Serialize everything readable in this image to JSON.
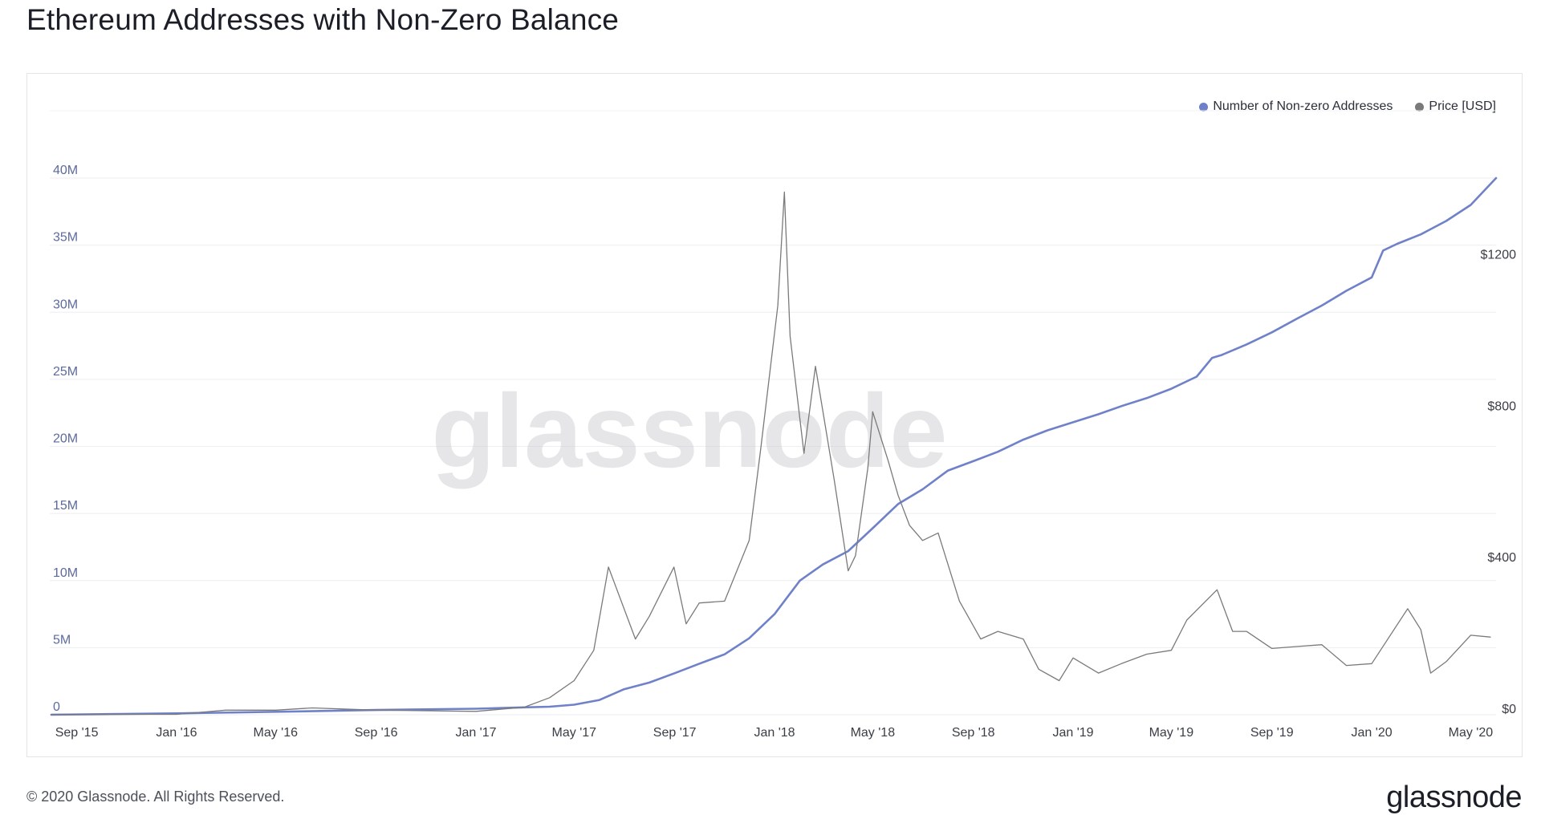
{
  "title": "Ethereum Addresses with Non-Zero Balance",
  "footer": {
    "copyright": "© 2020 Glassnode. All Rights Reserved.",
    "logo": "glassnode"
  },
  "watermark": "glassnode",
  "chart_data": {
    "type": "line",
    "title": "Ethereum Addresses with Non-Zero Balance",
    "x_range": [
      "2015-08-01",
      "2020-06-01"
    ],
    "x_tick_labels": [
      "Sep '15",
      "Jan '16",
      "May '16",
      "Sep '16",
      "Jan '17",
      "May '17",
      "Sep '17",
      "Jan '18",
      "May '18",
      "Sep '18",
      "Jan '19",
      "May '19",
      "Sep '19",
      "Jan '20",
      "May '20"
    ],
    "x_tick_dates": [
      "2015-09-01",
      "2016-01-01",
      "2016-05-01",
      "2016-09-01",
      "2017-01-01",
      "2017-05-01",
      "2017-09-01",
      "2018-01-01",
      "2018-05-01",
      "2018-09-01",
      "2019-01-01",
      "2019-05-01",
      "2019-09-01",
      "2020-01-01",
      "2020-05-01"
    ],
    "y_left": {
      "ylim": [
        0,
        40000000
      ],
      "tick_values": [
        0,
        5000000,
        10000000,
        15000000,
        20000000,
        25000000,
        30000000,
        35000000,
        40000000
      ],
      "tick_labels": [
        "0",
        "5M",
        "10M",
        "15M",
        "20M",
        "25M",
        "30M",
        "35M",
        "40M"
      ]
    },
    "y_right": {
      "ylim": [
        0,
        1400
      ],
      "tick_values": [
        0,
        400,
        800,
        1200
      ],
      "tick_labels": [
        "$0",
        "$400",
        "$800",
        "$1200"
      ]
    },
    "grid": true,
    "legend_position": "top-right",
    "series": [
      {
        "name": "Number of Non-zero Addresses",
        "axis": "left",
        "color": "#6f81c9",
        "points": [
          [
            "2015-08-01",
            0
          ],
          [
            "2016-01-01",
            100000
          ],
          [
            "2016-06-01",
            250000
          ],
          [
            "2016-09-01",
            350000
          ],
          [
            "2017-01-01",
            450000
          ],
          [
            "2017-04-01",
            600000
          ],
          [
            "2017-05-01",
            750000
          ],
          [
            "2017-06-01",
            1100000
          ],
          [
            "2017-07-01",
            1900000
          ],
          [
            "2017-08-01",
            2400000
          ],
          [
            "2017-09-01",
            3100000
          ],
          [
            "2017-10-01",
            3800000
          ],
          [
            "2017-11-01",
            4500000
          ],
          [
            "2017-12-01",
            5700000
          ],
          [
            "2018-01-01",
            7500000
          ],
          [
            "2018-02-01",
            10000000
          ],
          [
            "2018-03-01",
            11200000
          ],
          [
            "2018-04-01",
            12200000
          ],
          [
            "2018-05-01",
            13900000
          ],
          [
            "2018-06-01",
            15700000
          ],
          [
            "2018-07-01",
            16800000
          ],
          [
            "2018-08-01",
            18200000
          ],
          [
            "2018-09-01",
            18900000
          ],
          [
            "2018-10-01",
            19600000
          ],
          [
            "2018-11-01",
            20500000
          ],
          [
            "2018-12-01",
            21200000
          ],
          [
            "2019-01-01",
            21800000
          ],
          [
            "2019-02-01",
            22400000
          ],
          [
            "2019-03-01",
            23000000
          ],
          [
            "2019-04-01",
            23600000
          ],
          [
            "2019-05-01",
            24300000
          ],
          [
            "2019-06-01",
            25200000
          ],
          [
            "2019-06-20",
            26600000
          ],
          [
            "2019-07-01",
            26800000
          ],
          [
            "2019-08-01",
            27600000
          ],
          [
            "2019-09-01",
            28500000
          ],
          [
            "2019-10-01",
            29500000
          ],
          [
            "2019-11-01",
            30500000
          ],
          [
            "2019-12-01",
            31600000
          ],
          [
            "2020-01-01",
            32600000
          ],
          [
            "2020-01-15",
            34600000
          ],
          [
            "2020-02-01",
            35100000
          ],
          [
            "2020-03-01",
            35800000
          ],
          [
            "2020-04-01",
            36800000
          ],
          [
            "2020-05-01",
            38000000
          ],
          [
            "2020-06-01",
            40000000
          ]
        ]
      },
      {
        "name": "Price [USD]",
        "axis": "right",
        "color": "#7a7a7a",
        "points": [
          [
            "2015-08-01",
            1
          ],
          [
            "2015-09-01",
            1
          ],
          [
            "2016-01-01",
            1
          ],
          [
            "2016-03-01",
            12
          ],
          [
            "2016-05-01",
            12
          ],
          [
            "2016-06-15",
            18
          ],
          [
            "2016-09-01",
            12
          ],
          [
            "2017-01-01",
            9
          ],
          [
            "2017-03-01",
            20
          ],
          [
            "2017-04-01",
            45
          ],
          [
            "2017-05-01",
            90
          ],
          [
            "2017-05-25",
            170
          ],
          [
            "2017-06-12",
            390
          ],
          [
            "2017-07-15",
            200
          ],
          [
            "2017-08-01",
            260
          ],
          [
            "2017-08-31",
            390
          ],
          [
            "2017-09-15",
            240
          ],
          [
            "2017-10-01",
            295
          ],
          [
            "2017-11-01",
            300
          ],
          [
            "2017-12-01",
            460
          ],
          [
            "2017-12-15",
            700
          ],
          [
            "2018-01-05",
            1080
          ],
          [
            "2018-01-13",
            1380
          ],
          [
            "2018-01-20",
            1000
          ],
          [
            "2018-02-06",
            690
          ],
          [
            "2018-02-20",
            920
          ],
          [
            "2018-03-15",
            620
          ],
          [
            "2018-04-01",
            380
          ],
          [
            "2018-04-10",
            420
          ],
          [
            "2018-04-25",
            650
          ],
          [
            "2018-05-01",
            800
          ],
          [
            "2018-05-20",
            670
          ],
          [
            "2018-06-01",
            580
          ],
          [
            "2018-06-15",
            500
          ],
          [
            "2018-07-01",
            460
          ],
          [
            "2018-07-20",
            480
          ],
          [
            "2018-08-15",
            300
          ],
          [
            "2018-09-10",
            200
          ],
          [
            "2018-10-01",
            220
          ],
          [
            "2018-11-01",
            200
          ],
          [
            "2018-11-20",
            120
          ],
          [
            "2018-12-15",
            90
          ],
          [
            "2019-01-01",
            150
          ],
          [
            "2019-02-01",
            110
          ],
          [
            "2019-03-01",
            135
          ],
          [
            "2019-04-01",
            160
          ],
          [
            "2019-05-01",
            170
          ],
          [
            "2019-05-20",
            250
          ],
          [
            "2019-06-26",
            330
          ],
          [
            "2019-07-15",
            220
          ],
          [
            "2019-08-01",
            220
          ],
          [
            "2019-09-01",
            175
          ],
          [
            "2019-10-01",
            180
          ],
          [
            "2019-11-01",
            185
          ],
          [
            "2019-12-01",
            130
          ],
          [
            "2020-01-01",
            135
          ],
          [
            "2020-02-14",
            280
          ],
          [
            "2020-03-01",
            225
          ],
          [
            "2020-03-13",
            110
          ],
          [
            "2020-04-01",
            140
          ],
          [
            "2020-05-01",
            210
          ],
          [
            "2020-05-25",
            205
          ]
        ]
      }
    ]
  }
}
